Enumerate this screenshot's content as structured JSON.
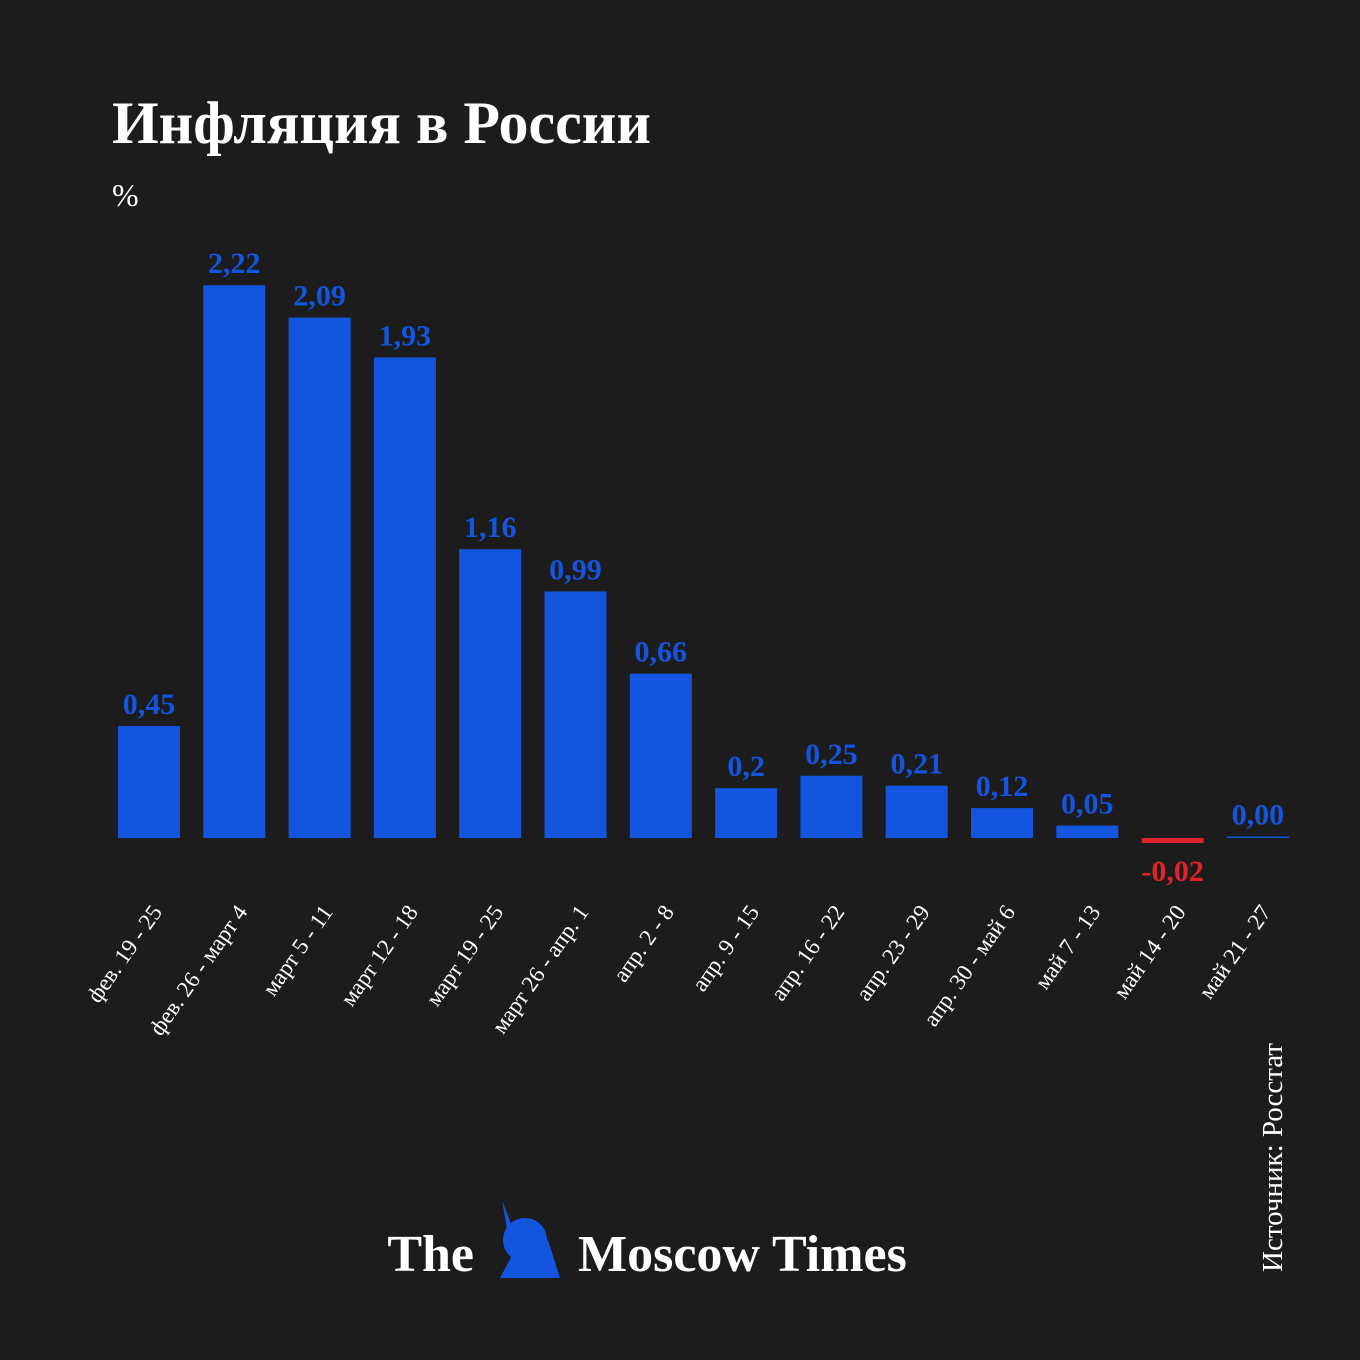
{
  "chart_data": {
    "type": "bar",
    "title": "Инфляция в России",
    "subtitle": "%",
    "categories": [
      "фев. 19 - 25",
      "фев. 26 - март 4",
      "март 5 - 11",
      "март 12 - 18",
      "март 19 - 25",
      "март 26 - апр. 1",
      "апр. 2 - 8",
      "апр. 9 - 15",
      "апр. 16 - 22",
      "апр. 23 - 29",
      "апр. 30 - май 6",
      "май 7 - 13",
      "май 14 - 20",
      "май 21 - 27"
    ],
    "values": [
      0.45,
      2.22,
      2.09,
      1.93,
      1.16,
      0.99,
      0.66,
      0.2,
      0.25,
      0.21,
      0.12,
      0.05,
      -0.02,
      0
    ],
    "value_labels": [
      "0,45",
      "2,22",
      "2,09",
      "1,93",
      "1,16",
      "0,99",
      "0,66",
      "0,2",
      "0,25",
      "0,21",
      "0,12",
      "0,05",
      "-0,02",
      "0,00"
    ],
    "color": "#1455e0",
    "negative_color": "#e0222a",
    "source": "Источник: Росстат"
  },
  "brand": [
    "The",
    "Moscow Times"
  ]
}
